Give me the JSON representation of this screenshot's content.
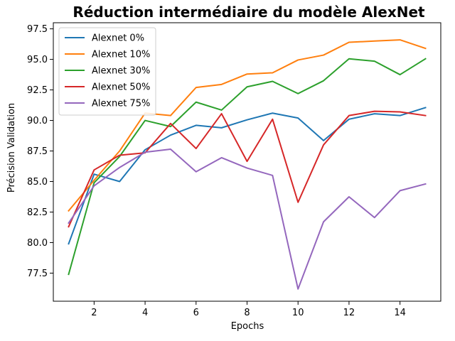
{
  "chart_data": {
    "type": "line",
    "title": "Réduction intermédiaire du modèle AlexNet",
    "xlabel": "Epochs",
    "ylabel": "Précision Validation",
    "xlim": [
      0.4,
      15.6
    ],
    "ylim": [
      75.2,
      98.0
    ],
    "xticks": [
      2,
      4,
      6,
      8,
      10,
      12,
      14
    ],
    "xtick_labels": [
      "2",
      "4",
      "6",
      "8",
      "10",
      "12",
      "14"
    ],
    "yticks": [
      77.5,
      80.0,
      82.5,
      85.0,
      87.5,
      90.0,
      92.5,
      95.0,
      97.5
    ],
    "ytick_labels": [
      "77.5",
      "80.0",
      "82.5",
      "85.0",
      "87.5",
      "90.0",
      "92.5",
      "95.0",
      "97.5"
    ],
    "grid": false,
    "legend_position": "top-left",
    "x": [
      1,
      2,
      3,
      4,
      5,
      6,
      7,
      8,
      9,
      10,
      11,
      12,
      13,
      14,
      15
    ],
    "series": [
      {
        "name": "Alexnet 0%",
        "color": "#1f77b4",
        "values": [
          79.9,
          85.6,
          85.0,
          87.6,
          88.8,
          89.6,
          89.4,
          90.05,
          90.6,
          90.2,
          88.35,
          90.1,
          90.55,
          90.4,
          91.05
        ]
      },
      {
        "name": "Alexnet 10%",
        "color": "#ff7f0e",
        "values": [
          82.6,
          85.1,
          87.5,
          90.6,
          90.4,
          92.7,
          92.95,
          93.8,
          93.9,
          94.95,
          95.35,
          96.4,
          96.5,
          96.6,
          95.9
        ]
      },
      {
        "name": "Alexnet 30%",
        "color": "#2ca02c",
        "values": [
          77.4,
          84.9,
          87.05,
          90.0,
          89.5,
          91.5,
          90.85,
          92.75,
          93.2,
          92.2,
          93.25,
          95.05,
          94.85,
          93.75,
          95.05
        ]
      },
      {
        "name": "Alexnet 50%",
        "color": "#d62728",
        "values": [
          81.3,
          85.95,
          87.15,
          87.35,
          89.75,
          87.7,
          90.55,
          86.65,
          90.1,
          83.3,
          88.0,
          90.4,
          90.75,
          90.7,
          90.4
        ]
      },
      {
        "name": "Alexnet 75%",
        "color": "#9467bd",
        "values": [
          81.6,
          84.65,
          86.15,
          87.4,
          87.65,
          85.8,
          86.95,
          86.1,
          85.5,
          76.2,
          81.7,
          83.75,
          82.05,
          84.25,
          84.8
        ]
      }
    ]
  }
}
